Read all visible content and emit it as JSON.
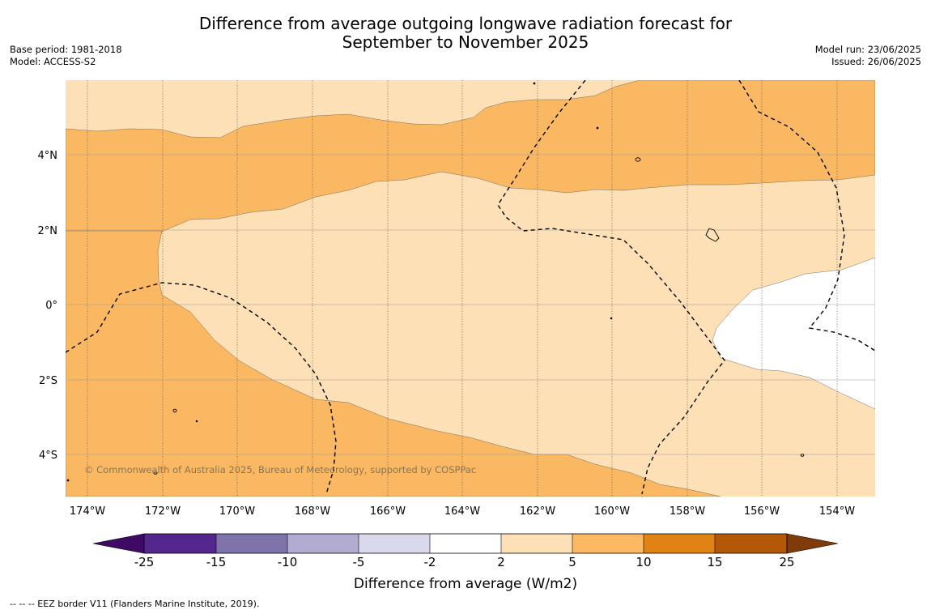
{
  "title": {
    "line1": "Difference from average outgoing longwave radiation forecast for",
    "line2": "September to November 2025"
  },
  "meta_left": {
    "base_period": "Base period: 1981-2018",
    "model": "Model: ACCESS-S2"
  },
  "meta_right": {
    "model_run": "Model run: 23/06/2025",
    "issued": "Issued: 26/06/2025"
  },
  "map": {
    "lon_labels": [
      "174°W",
      "172°W",
      "170°W",
      "168°W",
      "166°W",
      "164°W",
      "162°W",
      "160°W",
      "158°W",
      "156°W",
      "154°W"
    ],
    "lat_labels": [
      "4°N",
      "2°N",
      "0°",
      "2°S",
      "4°S"
    ],
    "copyright": "© Commonwealth of Australia 2025, Bureau of Meteorology, supported by COSPPac",
    "colors": {
      "band_2_5": "#fde0b6",
      "band_5_10": "#fbb862",
      "band_neutral": "#ffffff"
    }
  },
  "colorbar": {
    "label": "Difference from average (W/m2)",
    "ticks": [
      "-25",
      "-15",
      "-10",
      "-5",
      "-2",
      "2",
      "5",
      "10",
      "15",
      "25"
    ],
    "colors": [
      "#3f0a66",
      "#54278f",
      "#8073ac",
      "#b2abd2",
      "#d8daeb",
      "#ffffff",
      "#fee0b6",
      "#fdb863",
      "#e08214",
      "#b35806",
      "#7f3b08"
    ]
  },
  "footnote": "--  --  -- EEZ border V11 (Flanders Marine Institute, 2019)."
}
